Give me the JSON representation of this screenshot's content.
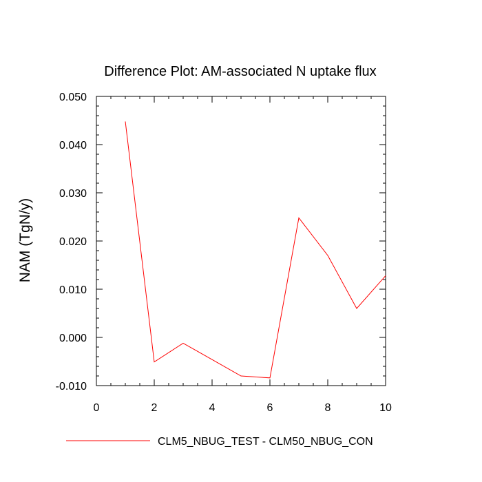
{
  "chart_data": {
    "type": "line",
    "title": "Difference Plot: AM-associated N uptake flux",
    "xlabel": "",
    "ylabel": "NAM  (TgN/y)",
    "xlim": [
      0,
      10
    ],
    "ylim": [
      -0.01,
      0.05
    ],
    "xticks": [
      0,
      2,
      4,
      6,
      8,
      10
    ],
    "xtick_labels": [
      "0",
      "2",
      "4",
      "6",
      "8",
      "10"
    ],
    "yticks": [
      -0.01,
      0.0,
      0.01,
      0.02,
      0.03,
      0.04,
      0.05
    ],
    "ytick_labels": [
      "-0.010",
      "0.000",
      "0.010",
      "0.020",
      "0.030",
      "0.040",
      "0.050"
    ],
    "grid": false,
    "legend_position": "bottom",
    "series": [
      {
        "name": "CLM5_NBUG_TEST - CLM50_NBUG_CON",
        "color": "#ff0000",
        "x": [
          1,
          2,
          3,
          4,
          5,
          6,
          7,
          8,
          9,
          10
        ],
        "values": [
          0.0448,
          -0.0051,
          -0.0012,
          -0.0046,
          -0.008,
          -0.0084,
          0.0248,
          0.017,
          0.006,
          0.0128
        ]
      }
    ]
  }
}
